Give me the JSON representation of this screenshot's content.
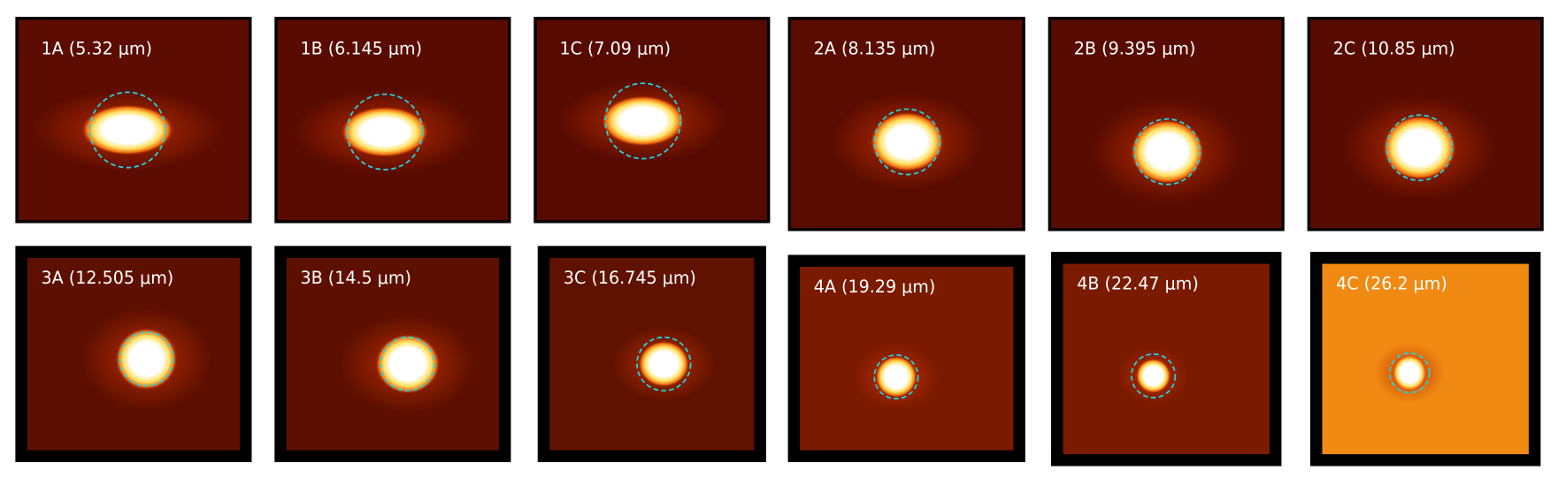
{
  "panels": [
    {
      "label": "1A (5.32 μm)"
    },
    {
      "label": "1B (6.145 μm)"
    },
    {
      "label": "1C (7.09 μm)"
    },
    {
      "label": "2A (8.135 μm)"
    },
    {
      "label": "2B (9.395 μm)"
    },
    {
      "label": "2C (10.85 μm)"
    },
    {
      "label": "3A (12.505 μm)"
    },
    {
      "label": "3B (14.5 μm)"
    },
    {
      "label": "3C (16.745 μm)"
    },
    {
      "label": "4A (19.29 μm)"
    },
    {
      "label": "4B (22.47 μm)"
    },
    {
      "label": "4C (26.2 μm)"
    }
  ]
}
